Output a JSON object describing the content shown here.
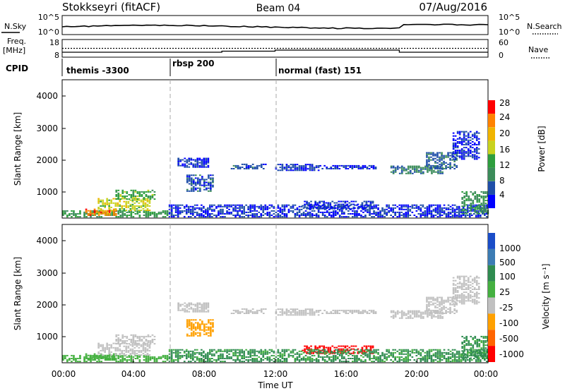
{
  "header": {
    "station": "Stokkseyri (fitACF)",
    "beam": "Beam 04",
    "date": "07/Aug/2016"
  },
  "noise_panel": {
    "left_label": "N.Sky",
    "left_ticks": [
      "10^5",
      "10^0"
    ],
    "right_label": "N.Search",
    "right_ticks": [
      "10^5",
      "10^0"
    ]
  },
  "freq_panel": {
    "left_label_1": "Freq.",
    "left_label_2": "[MHz]",
    "left_ticks": [
      "18",
      "8"
    ],
    "right_label": "Nave",
    "right_ticks": [
      "60",
      "0"
    ]
  },
  "cpid_panel": {
    "label": "CPID",
    "programs": [
      "themis -3300",
      "rbsp 200",
      "normal (fast) 151"
    ]
  },
  "power_panel": {
    "ylabel": "Slant Range [km]",
    "yticks": [
      "4000",
      "3000",
      "2000",
      "1000"
    ],
    "colorbar_title": "Power [dB]",
    "colorbar_ticks": [
      "28",
      "24",
      "20",
      "16",
      "12",
      "8",
      "4"
    ],
    "colors": [
      "#0000ff",
      "#1f4ea8",
      "#3c8c5a",
      "#2e9e3e",
      "#c8d21e",
      "#f0b400",
      "#ff8200",
      "#ff0000"
    ]
  },
  "velocity_panel": {
    "ylabel": "Slant Range [km]",
    "yticks": [
      "4000",
      "3000",
      "2000",
      "1000"
    ],
    "colorbar_title": "Velocity [m s⁻¹]",
    "colorbar_ticks": [
      "1000",
      "500",
      "100",
      "25",
      "-25",
      "-100",
      "-500",
      "-1000"
    ],
    "colors": [
      "#1a4dc8",
      "#3c7cb4",
      "#2f8c50",
      "#44b040",
      "#c0c0c0",
      "#ffa000",
      "#ff6400",
      "#ff0000"
    ]
  },
  "x_axis": {
    "ticks": [
      "00:00",
      "04:00",
      "08:00",
      "12:00",
      "16:00",
      "20:00",
      "00:00"
    ],
    "label": "Time UT"
  },
  "chart_data": {
    "type": "heatmap",
    "x_unit": "hours UT",
    "x_range": [
      0,
      24
    ],
    "y_range_km": [
      180,
      4500
    ],
    "program_boundaries_hours": [
      6,
      12
    ],
    "freq_mhz": [
      {
        "from": 0,
        "to": 9,
        "value": 10.8
      },
      {
        "from": 9,
        "to": 12,
        "value": 11.4
      },
      {
        "from": 12,
        "to": 19,
        "value": 12.0
      },
      {
        "from": 19,
        "to": 24,
        "value": 10.8
      }
    ],
    "nave_reference": 30,
    "echo_regions": [
      {
        "t0": 0.0,
        "t1": 6.0,
        "r0": 200,
        "r1": 400,
        "power_db": 14,
        "velocity": 60
      },
      {
        "t0": 1.3,
        "t1": 3.0,
        "r0": 250,
        "r1": 450,
        "power_db": 28,
        "velocity": 60
      },
      {
        "t0": 2.0,
        "t1": 5.0,
        "r0": 400,
        "r1": 800,
        "power_db": 20,
        "velocity": 5
      },
      {
        "t0": 3.0,
        "t1": 5.2,
        "r0": 750,
        "r1": 1050,
        "power_db": 16,
        "velocity": 5
      },
      {
        "t0": 6.5,
        "t1": 8.2,
        "r0": 1750,
        "r1": 2050,
        "power_db": 6,
        "velocity": 5
      },
      {
        "t0": 7.0,
        "t1": 8.5,
        "r0": 1000,
        "r1": 1500,
        "power_db": 8,
        "velocity": -60
      },
      {
        "t0": 9.5,
        "t1": 11.5,
        "r0": 1700,
        "r1": 1850,
        "power_db": 8,
        "velocity": 5
      },
      {
        "t0": 12.0,
        "t1": 14.5,
        "r0": 1650,
        "r1": 1850,
        "power_db": 7,
        "velocity": 5
      },
      {
        "t0": 14.5,
        "t1": 17.8,
        "r0": 1700,
        "r1": 1800,
        "power_db": 6,
        "velocity": 5
      },
      {
        "t0": 13.5,
        "t1": 17.5,
        "r0": 450,
        "r1": 700,
        "power_db": 7,
        "velocity": -600
      },
      {
        "t0": 18.5,
        "t1": 21.5,
        "r0": 1550,
        "r1": 1800,
        "power_db": 11,
        "velocity": 5
      },
      {
        "t0": 20.5,
        "t1": 22.3,
        "r0": 1700,
        "r1": 2200,
        "power_db": 9,
        "velocity": 5
      },
      {
        "t0": 22.0,
        "t1": 23.5,
        "r0": 2000,
        "r1": 2900,
        "power_db": 6,
        "velocity": 5
      },
      {
        "t0": 6.0,
        "t1": 24.0,
        "r0": 200,
        "r1": 600,
        "power_db": 6,
        "velocity": 110
      },
      {
        "t0": 22.5,
        "t1": 24.0,
        "r0": 300,
        "r1": 1000,
        "power_db": 13,
        "velocity": 110
      }
    ]
  }
}
